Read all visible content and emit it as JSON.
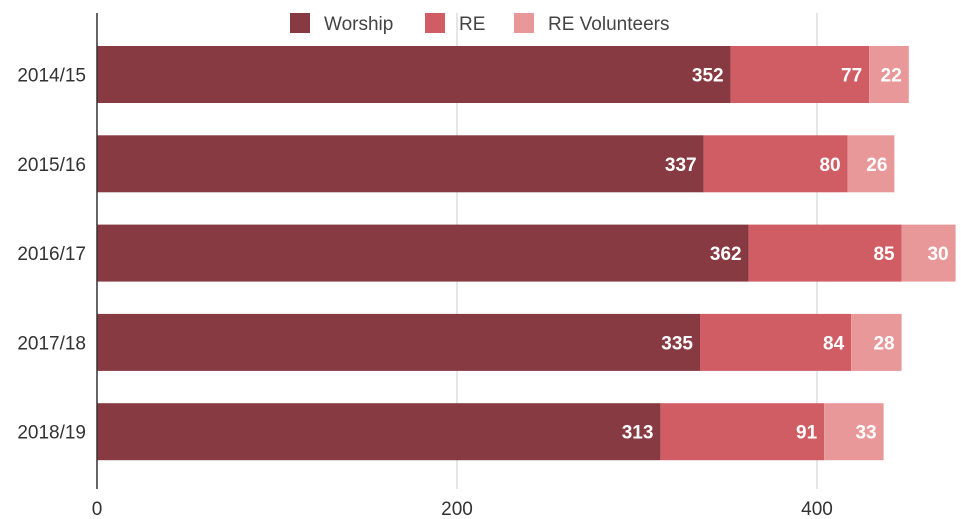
{
  "chart_data": {
    "type": "bar",
    "orientation": "horizontal",
    "stacked": true,
    "categories": [
      "2014/15",
      "2015/16",
      "2016/17",
      "2017/18",
      "2018/19"
    ],
    "series": [
      {
        "name": "Worship",
        "color": "#873a42",
        "values": [
          352,
          337,
          362,
          335,
          313
        ]
      },
      {
        "name": "RE",
        "color": "#d05c64",
        "values": [
          77,
          80,
          85,
          84,
          91
        ]
      },
      {
        "name": "RE Volunteers",
        "color": "#e9989a",
        "values": [
          22,
          26,
          30,
          28,
          33
        ]
      }
    ],
    "xlim": [
      0,
      480
    ],
    "xticks": [
      0,
      200,
      400
    ],
    "grid": "vertical",
    "legend": "top",
    "title": "",
    "xlabel": "",
    "ylabel": ""
  }
}
